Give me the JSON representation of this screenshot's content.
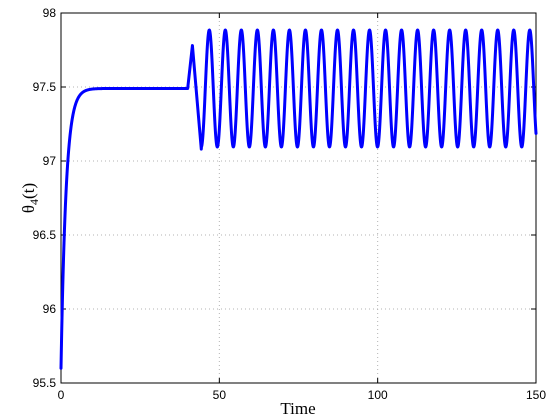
{
  "chart_data": {
    "type": "line",
    "title": "",
    "xlabel": "Time",
    "ylabel": {
      "main": "θ",
      "sub": "4",
      "tail": "(t)"
    },
    "xlim": [
      0,
      150
    ],
    "ylim": [
      95.5,
      98
    ],
    "xticks": [
      0,
      50,
      100,
      150
    ],
    "yticks": [
      95.5,
      96,
      96.5,
      97,
      97.5,
      98
    ],
    "grid": true,
    "line_color": "#0000ff",
    "series": [
      {
        "rise": {
          "start_t": 0,
          "start_value": 95.6,
          "plateau": 97.49,
          "time_constant": 1.6,
          "end_t": 40
        },
        "step": {
          "t": 40,
          "value": 97.49
        },
        "oscillation": {
          "start_t": 40.6,
          "end_t": 150,
          "center": 97.49,
          "amplitude": 0.395,
          "period": 5.06,
          "first_peak_t": 41.5,
          "first_peak_value": 97.78,
          "first_trough_t": 44.3,
          "first_trough_value": 97.08,
          "settle_cycles": 2,
          "peak_value": 97.885,
          "trough_value": 97.095,
          "end_value": 97.26
        }
      }
    ]
  }
}
